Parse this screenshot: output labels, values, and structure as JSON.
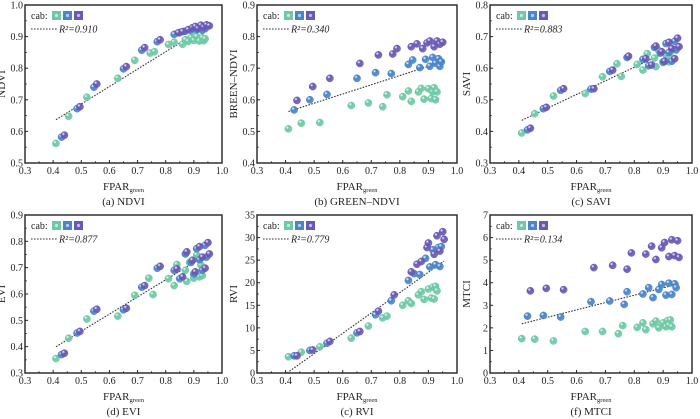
{
  "chart_data": [
    {
      "type": "scatter",
      "id": "a",
      "caption": "(a) NDVI",
      "xlabel": "FPAR",
      "xlabel_sub": "green",
      "ylabel": "NDVI",
      "xlim": [
        0.3,
        1.0
      ],
      "ylim": [
        0.5,
        1.0
      ],
      "xticks": [
        "0.3",
        "0.4",
        "0.5",
        "0.6",
        "0.7",
        "0.8",
        "0.9",
        "1.0"
      ],
      "yticks": [
        "0.5",
        "0.6",
        "0.7",
        "0.8",
        "0.9",
        "1.0"
      ],
      "legend": {
        "label": "cab:",
        "fit_label": "R²=0.910",
        "position": "top-left"
      },
      "fit": {
        "x": [
          0.41,
          0.95
        ],
        "y": [
          0.637,
          0.935
        ],
        "style": "dotted"
      },
      "series": [
        {
          "name": "cab-low",
          "x": [
            0.41,
            0.455,
            0.52,
            0.63,
            0.69,
            0.745,
            0.76,
            0.81,
            0.83,
            0.86,
            0.87,
            0.88,
            0.89,
            0.9,
            0.91,
            0.92,
            0.93,
            0.935,
            0.94
          ],
          "y": [
            0.562,
            0.648,
            0.708,
            0.768,
            0.825,
            0.848,
            0.852,
            0.875,
            0.882,
            0.876,
            0.89,
            0.885,
            0.897,
            0.888,
            0.9,
            0.886,
            0.896,
            0.887,
            0.893
          ]
        },
        {
          "name": "cab-mid",
          "x": [
            0.43,
            0.485,
            0.545,
            0.65,
            0.715,
            0.77,
            0.83,
            0.85,
            0.87,
            0.89,
            0.9,
            0.91,
            0.92,
            0.93,
            0.94,
            0.945
          ],
          "y": [
            0.582,
            0.672,
            0.74,
            0.798,
            0.857,
            0.884,
            0.907,
            0.913,
            0.917,
            0.92,
            0.925,
            0.922,
            0.928,
            0.92,
            0.925,
            0.932
          ]
        },
        {
          "name": "cab-high",
          "x": [
            0.44,
            0.495,
            0.555,
            0.66,
            0.725,
            0.78,
            0.845,
            0.86,
            0.88,
            0.895,
            0.905,
            0.915,
            0.925,
            0.935,
            0.945,
            0.955
          ],
          "y": [
            0.588,
            0.678,
            0.75,
            0.805,
            0.865,
            0.89,
            0.912,
            0.916,
            0.922,
            0.928,
            0.932,
            0.926,
            0.936,
            0.93,
            0.937,
            0.934
          ]
        }
      ]
    },
    {
      "type": "scatter",
      "id": "b",
      "caption": "(b) GREEN–NDVI",
      "xlabel": "FPAR",
      "xlabel_sub": "green",
      "ylabel": "BREEN–NDVI",
      "xlim": [
        0.3,
        1.0
      ],
      "ylim": [
        0.4,
        0.9
      ],
      "xticks": [
        "0.3",
        "0.4",
        "0.5",
        "0.6",
        "0.7",
        "0.8",
        "0.9",
        "1.0"
      ],
      "yticks": [
        "0.4",
        "0.5",
        "0.6",
        "0.7",
        "0.8",
        "0.9"
      ],
      "legend": {
        "label": "cab:",
        "fit_label": "R²=0.340",
        "position": "top-left"
      },
      "fit": {
        "x": [
          0.41,
          0.955
        ],
        "y": [
          0.563,
          0.722
        ],
        "style": "dotted"
      },
      "series": [
        {
          "name": "cab-low",
          "x": [
            0.41,
            0.455,
            0.52,
            0.63,
            0.69,
            0.74,
            0.755,
            0.81,
            0.83,
            0.84,
            0.865,
            0.875,
            0.885,
            0.9,
            0.91,
            0.915,
            0.92,
            0.925,
            0.93
          ],
          "y": [
            0.508,
            0.526,
            0.528,
            0.582,
            0.59,
            0.578,
            0.616,
            0.61,
            0.628,
            0.595,
            0.625,
            0.636,
            0.602,
            0.635,
            0.604,
            0.625,
            0.638,
            0.6,
            0.625
          ]
        },
        {
          "name": "cab-mid",
          "x": [
            0.43,
            0.485,
            0.545,
            0.65,
            0.715,
            0.77,
            0.83,
            0.845,
            0.87,
            0.89,
            0.905,
            0.915,
            0.925,
            0.935,
            0.94,
            0.945
          ],
          "y": [
            0.568,
            0.6,
            0.617,
            0.668,
            0.686,
            0.683,
            0.712,
            0.726,
            0.702,
            0.728,
            0.706,
            0.734,
            0.716,
            0.73,
            0.706,
            0.72
          ]
        },
        {
          "name": "cab-high",
          "x": [
            0.44,
            0.495,
            0.555,
            0.66,
            0.725,
            0.775,
            0.79,
            0.84,
            0.86,
            0.88,
            0.895,
            0.905,
            0.92,
            0.93,
            0.94,
            0.95
          ],
          "y": [
            0.598,
            0.642,
            0.668,
            0.715,
            0.742,
            0.745,
            0.762,
            0.768,
            0.777,
            0.762,
            0.78,
            0.786,
            0.768,
            0.786,
            0.776,
            0.782
          ]
        }
      ]
    },
    {
      "type": "scatter",
      "id": "c",
      "caption": "(c) SAVI",
      "xlabel": "FPAR",
      "xlabel_sub": "green",
      "ylabel": "SAVI",
      "xlim": [
        0.3,
        1.0
      ],
      "ylim": [
        0.3,
        0.8
      ],
      "xticks": [
        "0.3",
        "0.4",
        "0.5",
        "0.6",
        "0.7",
        "0.8",
        "0.9",
        "1.0"
      ],
      "yticks": [
        "0.3",
        "0.4",
        "0.5",
        "0.6",
        "0.7",
        "0.8"
      ],
      "legend": {
        "label": "cab:",
        "fit_label": "R²=0.883",
        "position": "top-left"
      },
      "fit": {
        "x": [
          0.41,
          0.955
        ],
        "y": [
          0.435,
          0.67
        ],
        "style": "dotted"
      },
      "series": [
        {
          "name": "cab-low",
          "x": [
            0.41,
            0.455,
            0.52,
            0.63,
            0.69,
            0.74,
            0.755,
            0.81,
            0.83,
            0.845,
            0.87,
            0.875,
            0.885,
            0.9,
            0.91,
            0.92,
            0.925,
            0.93
          ],
          "y": [
            0.395,
            0.456,
            0.512,
            0.52,
            0.573,
            0.614,
            0.574,
            0.612,
            0.594,
            0.646,
            0.632,
            0.605,
            0.656,
            0.618,
            0.642,
            0.62,
            0.65,
            0.628
          ]
        },
        {
          "name": "cab-mid",
          "x": [
            0.43,
            0.485,
            0.545,
            0.65,
            0.715,
            0.775,
            0.83,
            0.85,
            0.87,
            0.89,
            0.9,
            0.91,
            0.92,
            0.93,
            0.94,
            0.945
          ],
          "y": [
            0.405,
            0.472,
            0.53,
            0.534,
            0.59,
            0.634,
            0.628,
            0.608,
            0.666,
            0.648,
            0.62,
            0.678,
            0.65,
            0.622,
            0.685,
            0.658
          ]
        },
        {
          "name": "cab-high",
          "x": [
            0.44,
            0.495,
            0.555,
            0.66,
            0.725,
            0.78,
            0.84,
            0.86,
            0.875,
            0.895,
            0.905,
            0.92,
            0.93,
            0.94,
            0.95,
            0.955
          ],
          "y": [
            0.41,
            0.476,
            0.535,
            0.535,
            0.594,
            0.638,
            0.63,
            0.61,
            0.67,
            0.652,
            0.622,
            0.682,
            0.662,
            0.63,
            0.695,
            0.668
          ]
        }
      ]
    },
    {
      "type": "scatter",
      "id": "d",
      "caption": "(d) EVI",
      "xlabel": "FPAR",
      "xlabel_sub": "green",
      "ylabel": "EVI",
      "xlim": [
        0.3,
        1.0
      ],
      "ylim": [
        0.3,
        0.9
      ],
      "xticks": [
        "0.3",
        "0.4",
        "0.5",
        "0.6",
        "0.7",
        "0.8",
        "0.9",
        "1.0"
      ],
      "yticks": [
        "0.3",
        "0.4",
        "0.5",
        "0.6",
        "0.7",
        "0.8",
        "0.9"
      ],
      "legend": {
        "label": "cab:",
        "fit_label": "R²=0.877",
        "position": "top-left"
      },
      "fit": {
        "x": [
          0.41,
          0.955
        ],
        "y": [
          0.4,
          0.755
        ],
        "style": "dotted"
      },
      "series": [
        {
          "name": "cab-low",
          "x": [
            0.41,
            0.455,
            0.52,
            0.63,
            0.69,
            0.74,
            0.755,
            0.81,
            0.83,
            0.84,
            0.87,
            0.875,
            0.885,
            0.9,
            0.91,
            0.92,
            0.925,
            0.93
          ],
          "y": [
            0.355,
            0.432,
            0.505,
            0.516,
            0.595,
            0.66,
            0.598,
            0.658,
            0.632,
            0.712,
            0.69,
            0.648,
            0.72,
            0.66,
            0.748,
            0.665,
            0.71,
            0.67
          ]
        },
        {
          "name": "cab-mid",
          "x": [
            0.43,
            0.485,
            0.545,
            0.65,
            0.715,
            0.77,
            0.83,
            0.85,
            0.87,
            0.89,
            0.9,
            0.91,
            0.92,
            0.93,
            0.94,
            0.945
          ],
          "y": [
            0.37,
            0.452,
            0.535,
            0.54,
            0.626,
            0.698,
            0.69,
            0.658,
            0.752,
            0.72,
            0.676,
            0.772,
            0.73,
            0.69,
            0.785,
            0.74
          ]
        },
        {
          "name": "cab-high",
          "x": [
            0.44,
            0.495,
            0.555,
            0.66,
            0.725,
            0.78,
            0.84,
            0.86,
            0.875,
            0.895,
            0.905,
            0.92,
            0.93,
            0.94,
            0.95,
            0.955
          ],
          "y": [
            0.375,
            0.458,
            0.542,
            0.546,
            0.632,
            0.705,
            0.695,
            0.665,
            0.76,
            0.728,
            0.684,
            0.78,
            0.74,
            0.698,
            0.795,
            0.752
          ]
        }
      ]
    },
    {
      "type": "scatter",
      "id": "e",
      "caption": "(c) RVI",
      "xlabel": "FPAR",
      "xlabel_sub": "green",
      "ylabel": "RVI",
      "xlim": [
        0.3,
        1.0
      ],
      "ylim": [
        0,
        35
      ],
      "xticks": [
        "0.3",
        "0.4",
        "0.5",
        "0.6",
        "0.7",
        "0.8",
        "0.9",
        "1.0"
      ],
      "yticks": [
        "0",
        "5",
        "10",
        "15",
        "20",
        "25",
        "30",
        "35"
      ],
      "legend": {
        "label": "cab:",
        "fit_label": "R²=0.779",
        "position": "top-left"
      },
      "fit": {
        "x": [
          0.405,
          0.955
        ],
        "y": [
          0.0,
          24.8
        ],
        "style": "dotted"
      },
      "series": [
        {
          "name": "cab-low",
          "x": [
            0.41,
            0.455,
            0.52,
            0.63,
            0.69,
            0.74,
            0.755,
            0.81,
            0.83,
            0.84,
            0.865,
            0.875,
            0.885,
            0.9,
            0.91,
            0.915,
            0.92,
            0.925,
            0.93
          ],
          "y": [
            3.6,
            4.6,
            5.8,
            7.7,
            10.4,
            12.2,
            12.6,
            15.0,
            16.0,
            15.4,
            17.3,
            18.0,
            16.3,
            18.6,
            16.6,
            19.0,
            16.4,
            19.2,
            18.2
          ]
        },
        {
          "name": "cab-mid",
          "x": [
            0.43,
            0.485,
            0.545,
            0.65,
            0.715,
            0.77,
            0.83,
            0.85,
            0.87,
            0.89,
            0.905,
            0.915,
            0.925,
            0.935,
            0.94,
            0.945
          ],
          "y": [
            3.8,
            5.0,
            6.6,
            8.9,
            12.9,
            16.0,
            20.5,
            22.0,
            21.8,
            25.4,
            23.5,
            27.3,
            24.0,
            27.8,
            23.6,
            28.0
          ]
        },
        {
          "name": "cab-high",
          "x": [
            0.44,
            0.495,
            0.555,
            0.66,
            0.725,
            0.78,
            0.84,
            0.86,
            0.875,
            0.895,
            0.9,
            0.92,
            0.93,
            0.94,
            0.95,
            0.955
          ],
          "y": [
            3.8,
            5.1,
            7.0,
            9.2,
            13.7,
            17.3,
            22.4,
            24.1,
            24.7,
            27.8,
            28.8,
            26.3,
            30.4,
            27.0,
            31.3,
            29.6
          ]
        }
      ]
    },
    {
      "type": "scatter",
      "id": "f",
      "caption": "(f) MTCI",
      "xlabel": "FPAR",
      "xlabel_sub": "green",
      "ylabel": "MTCI",
      "xlim": [
        0.3,
        1.0
      ],
      "ylim": [
        0,
        7
      ],
      "xticks": [
        "0.3",
        "0.4",
        "0.5",
        "0.6",
        "0.7",
        "0.8",
        "0.9",
        "1.0"
      ],
      "yticks": [
        "0",
        "1",
        "2",
        "3",
        "4",
        "5",
        "6",
        "7"
      ],
      "legend": {
        "label": "cab:",
        "fit_label": "R²=0.134",
        "position": "top-left"
      },
      "fit": {
        "x": [
          0.41,
          0.955
        ],
        "y": [
          2.18,
          3.95
        ],
        "style": "dotted"
      },
      "series": [
        {
          "name": "cab-low",
          "x": [
            0.41,
            0.455,
            0.52,
            0.63,
            0.69,
            0.745,
            0.76,
            0.81,
            0.83,
            0.84,
            0.865,
            0.875,
            0.885,
            0.9,
            0.91,
            0.915,
            0.92,
            0.925,
            0.93
          ],
          "y": [
            1.52,
            1.5,
            1.42,
            1.84,
            1.84,
            1.74,
            2.1,
            2.02,
            2.22,
            1.92,
            2.18,
            2.3,
            2.0,
            2.22,
            2.05,
            2.32,
            2.12,
            2.35,
            2.05
          ]
        },
        {
          "name": "cab-mid",
          "x": [
            0.43,
            0.485,
            0.545,
            0.65,
            0.715,
            0.765,
            0.775,
            0.83,
            0.85,
            0.865,
            0.885,
            0.895,
            0.91,
            0.92,
            0.93,
            0.94,
            0.945
          ],
          "y": [
            2.52,
            2.55,
            2.48,
            3.16,
            3.19,
            3.04,
            3.6,
            3.5,
            3.78,
            3.34,
            3.7,
            3.92,
            3.45,
            3.98,
            3.48,
            3.95,
            3.78
          ]
        },
        {
          "name": "cab-high",
          "x": [
            0.44,
            0.495,
            0.555,
            0.66,
            0.725,
            0.775,
            0.79,
            0.84,
            0.86,
            0.875,
            0.895,
            0.905,
            0.92,
            0.93,
            0.94,
            0.95,
            0.955
          ],
          "y": [
            3.64,
            3.75,
            3.69,
            4.67,
            4.77,
            4.6,
            5.32,
            5.27,
            5.62,
            5.03,
            5.55,
            5.78,
            5.16,
            5.9,
            5.2,
            5.86,
            5.12
          ]
        }
      ]
    }
  ],
  "colors": {
    "cab-low": "#6ec9a5",
    "cab-mid": "#4a84c9",
    "cab-high": "#6a58b6",
    "axis": "#222222",
    "fit": "#333333"
  }
}
